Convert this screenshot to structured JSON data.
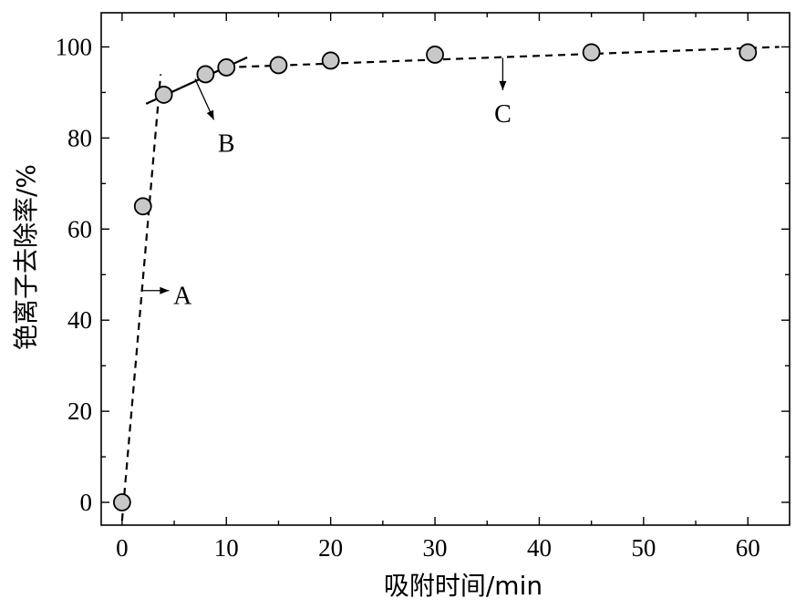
{
  "chart_data": {
    "type": "scatter",
    "xlabel": "吸附时间/min",
    "ylabel": "铯离子去除率/%",
    "xlim": [
      -2,
      64
    ],
    "ylim": [
      -5,
      107.5
    ],
    "x_ticks": [
      0,
      10,
      20,
      30,
      40,
      50,
      60
    ],
    "y_ticks": [
      0,
      20,
      40,
      60,
      80,
      100
    ],
    "grid": false,
    "points": [
      {
        "x": 0,
        "y": 0
      },
      {
        "x": 2,
        "y": 65
      },
      {
        "x": 4,
        "y": 89.5
      },
      {
        "x": 8,
        "y": 94
      },
      {
        "x": 10,
        "y": 95.5
      },
      {
        "x": 15,
        "y": 96
      },
      {
        "x": 20,
        "y": 97
      },
      {
        "x": 30,
        "y": 98.3
      },
      {
        "x": 45,
        "y": 98.8
      },
      {
        "x": 60,
        "y": 98.8
      }
    ],
    "fit_lines": [
      {
        "label": "A",
        "style": "dashed",
        "from": [
          0,
          -4
        ],
        "to": [
          3.7,
          94
        ]
      },
      {
        "label": "B",
        "style": "solid",
        "from": [
          2.3,
          87.5
        ],
        "to": [
          12,
          97.7
        ]
      },
      {
        "label": "C",
        "style": "dashed",
        "from": [
          10,
          95.5
        ],
        "to": [
          63,
          100
        ]
      }
    ],
    "annotations": [
      {
        "text": "A",
        "arrow_from": [
          1.8,
          46.5
        ],
        "arrow_to": [
          4.5,
          46.5
        ],
        "text_at": [
          5.8,
          45.5
        ]
      },
      {
        "text": "B",
        "arrow_from": [
          7,
          93
        ],
        "arrow_to": [
          8.8,
          84
        ],
        "text_at": [
          10,
          79
        ]
      },
      {
        "text": "C",
        "arrow_from": [
          36.5,
          97.6
        ],
        "arrow_to": [
          36.5,
          90.5
        ],
        "text_at": [
          36.5,
          85.5
        ]
      }
    ]
  }
}
